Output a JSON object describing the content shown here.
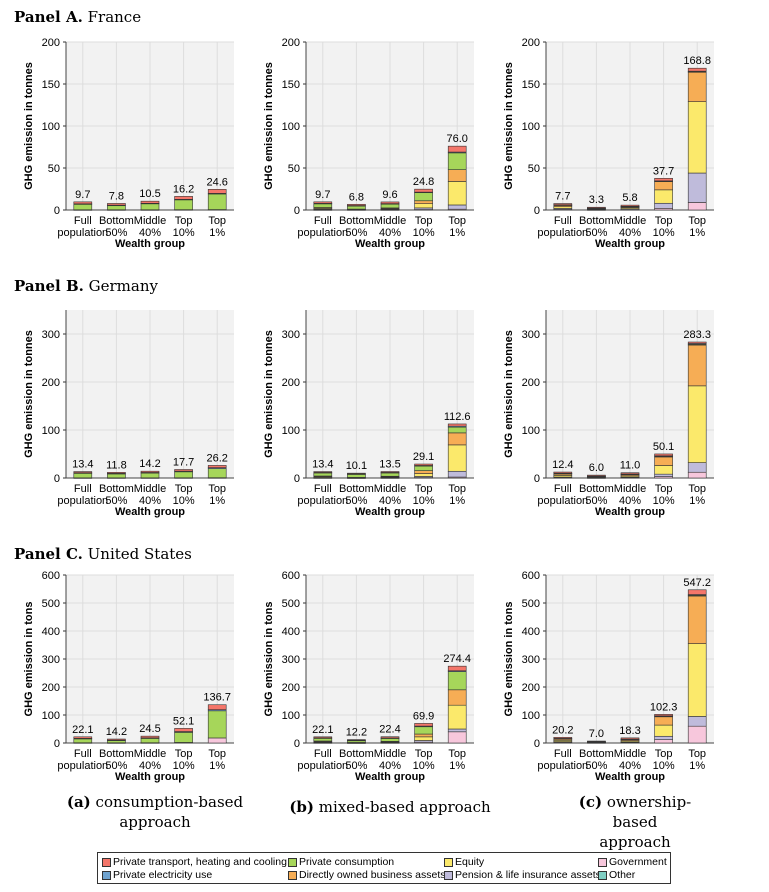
{
  "panels": [
    {
      "label": "Panel A.",
      "country": "France"
    },
    {
      "label": "Panel B.",
      "country": "Germany"
    },
    {
      "label": "Panel C.",
      "country": "United States"
    }
  ],
  "captions": [
    {
      "letter": "(a)",
      "line1": "consumption-based",
      "line2": "approach"
    },
    {
      "letter": "(b)",
      "line1": "mixed-based approach",
      "line2": ""
    },
    {
      "letter": "(c)",
      "line1": "ownership-based",
      "line2": "approach"
    }
  ],
  "legend": [
    {
      "name": "Private transport, heating and cooling",
      "color": "#f4766a"
    },
    {
      "name": "Private electricity use",
      "color": "#6fa3cf"
    },
    {
      "name": "Private consumption",
      "color": "#a6d65a"
    },
    {
      "name": "Directly owned business assets",
      "color": "#f6ad55"
    },
    {
      "name": "Equity",
      "color": "#fbe96b"
    },
    {
      "name": "Pension & life insurance assets",
      "color": "#bfbbdb"
    },
    {
      "name": "Government",
      "color": "#f7c7dc"
    },
    {
      "name": "Other",
      "color": "#7fcfc4"
    }
  ],
  "chart_data": [
    {
      "type": "bar",
      "panel": "France",
      "approach": "consumption-based",
      "ylabel": "GHG emission in tonnes",
      "xlabel": "Wealth group",
      "ylim": [
        0,
        200
      ],
      "yticks": [
        0,
        50,
        100,
        150,
        200
      ],
      "categories": [
        "Full population",
        "Bottom 50%",
        "Middle 40%",
        "Top 10%",
        "Top 1%"
      ],
      "totals": [
        9.7,
        7.8,
        10.5,
        16.2,
        24.6
      ],
      "series": [
        {
          "name": "Government",
          "values": [
            0.3,
            0.3,
            0.3,
            0.4,
            0.5
          ]
        },
        {
          "name": "Private consumption",
          "values": [
            6.7,
            5.2,
            7.3,
            11.8,
            18.6
          ]
        },
        {
          "name": "Private electricity use",
          "values": [
            0.4,
            0.3,
            0.4,
            0.5,
            0.7
          ]
        },
        {
          "name": "Private transport, heating and cooling",
          "values": [
            2.3,
            2.0,
            2.5,
            3.5,
            4.8
          ]
        }
      ]
    },
    {
      "type": "bar",
      "panel": "France",
      "approach": "mixed-based",
      "ylabel": "GHG emission in tonnes",
      "xlabel": "Wealth group",
      "ylim": [
        0,
        200
      ],
      "yticks": [
        0,
        50,
        100,
        150,
        200
      ],
      "categories": [
        "Full population",
        "Bottom 50%",
        "Middle 40%",
        "Top 10%",
        "Top 1%"
      ],
      "totals": [
        9.7,
        6.8,
        9.6,
        24.8,
        76.0
      ],
      "series": [
        {
          "name": "Government",
          "values": [
            0.3,
            0.3,
            0.3,
            0.5,
            1.0
          ]
        },
        {
          "name": "Pension & life insurance assets",
          "values": [
            0.8,
            0.3,
            0.7,
            2.0,
            5.0
          ]
        },
        {
          "name": "Equity",
          "values": [
            1.0,
            0.2,
            0.7,
            5.0,
            28.0
          ]
        },
        {
          "name": "Directly owned business assets",
          "values": [
            0.9,
            0.3,
            0.8,
            3.5,
            14.0
          ]
        },
        {
          "name": "Private consumption",
          "values": [
            4.6,
            3.9,
            4.8,
            9.8,
            20.0
          ]
        },
        {
          "name": "Private electricity use",
          "values": [
            0.3,
            0.3,
            0.3,
            0.5,
            1.0
          ]
        },
        {
          "name": "Private transport, heating and cooling",
          "values": [
            1.8,
            1.5,
            2.0,
            3.5,
            7.0
          ]
        }
      ]
    },
    {
      "type": "bar",
      "panel": "France",
      "approach": "ownership-based",
      "ylabel": "GHG emission in tonnes",
      "xlabel": "Wealth group",
      "ylim": [
        0,
        200
      ],
      "yticks": [
        0,
        50,
        100,
        150,
        200
      ],
      "categories": [
        "Full population",
        "Bottom 50%",
        "Middle 40%",
        "Top 10%",
        "Top 1%"
      ],
      "totals": [
        7.7,
        3.3,
        5.8,
        37.7,
        168.8
      ],
      "series": [
        {
          "name": "Government",
          "values": [
            0.6,
            0.3,
            0.5,
            2.0,
            9.0
          ]
        },
        {
          "name": "Pension & life insurance assets",
          "values": [
            1.3,
            0.5,
            1.0,
            6.0,
            35.0
          ]
        },
        {
          "name": "Equity",
          "values": [
            2.0,
            0.5,
            1.3,
            16.0,
            85.0
          ]
        },
        {
          "name": "Directly owned business assets",
          "values": [
            2.0,
            0.7,
            1.3,
            10.0,
            35.0
          ]
        },
        {
          "name": "Private consumption",
          "values": [
            0.2,
            0.2,
            0.2,
            0.5,
            1.0
          ]
        },
        {
          "name": "Private electricity use",
          "values": [
            0.1,
            0.1,
            0.1,
            0.2,
            0.3
          ]
        },
        {
          "name": "Private transport, heating and cooling",
          "values": [
            1.5,
            1.0,
            1.4,
            3.0,
            3.5
          ]
        }
      ]
    },
    {
      "type": "bar",
      "panel": "Germany",
      "approach": "consumption-based",
      "ylabel": "GHG emission in tonnes",
      "xlabel": "Wealth group",
      "ylim": [
        0,
        350
      ],
      "yticks": [
        0,
        100,
        200,
        300
      ],
      "categories": [
        "Full population",
        "Bottom 50%",
        "Middle 40%",
        "Top 10%",
        "Top 1%"
      ],
      "totals": [
        13.4,
        11.8,
        14.2,
        17.7,
        26.2
      ],
      "series": [
        {
          "name": "Government",
          "values": [
            0.4,
            0.4,
            0.4,
            0.5,
            0.6
          ]
        },
        {
          "name": "Private consumption",
          "values": [
            9.4,
            8.2,
            9.8,
            12.4,
            19.0
          ]
        },
        {
          "name": "Private electricity use",
          "values": [
            1.2,
            1.0,
            1.3,
            1.5,
            2.0
          ]
        },
        {
          "name": "Private transport, heating and cooling",
          "values": [
            2.4,
            2.2,
            2.7,
            3.3,
            4.6
          ]
        }
      ]
    },
    {
      "type": "bar",
      "panel": "Germany",
      "approach": "mixed-based",
      "ylabel": "GHG emission in tonnes",
      "xlabel": "Wealth group",
      "ylim": [
        0,
        350
      ],
      "yticks": [
        0,
        100,
        200,
        300
      ],
      "categories": [
        "Full population",
        "Bottom 50%",
        "Middle 40%",
        "Top 10%",
        "Top 1%"
      ],
      "totals": [
        13.4,
        10.1,
        13.5,
        29.1,
        112.6
      ],
      "series": [
        {
          "name": "Government",
          "values": [
            0.4,
            0.3,
            0.4,
            0.8,
            2.0
          ]
        },
        {
          "name": "Pension & life insurance assets",
          "values": [
            0.8,
            0.3,
            0.8,
            2.5,
            12.0
          ]
        },
        {
          "name": "Equity",
          "values": [
            1.5,
            0.3,
            1.2,
            6.0,
            55.0
          ]
        },
        {
          "name": "Directly owned business assets",
          "values": [
            1.5,
            0.4,
            1.3,
            6.0,
            25.0
          ]
        },
        {
          "name": "Private consumption",
          "values": [
            6.5,
            6.5,
            7.0,
            9.5,
            12.0
          ]
        },
        {
          "name": "Private electricity use",
          "values": [
            0.9,
            0.8,
            0.9,
            1.3,
            2.0
          ]
        },
        {
          "name": "Private transport, heating and cooling",
          "values": [
            1.8,
            1.5,
            1.9,
            3.0,
            4.6
          ]
        }
      ]
    },
    {
      "type": "bar",
      "panel": "Germany",
      "approach": "ownership-based",
      "ylabel": "GHG emission in tonnes",
      "xlabel": "Wealth group",
      "ylim": [
        0,
        350
      ],
      "yticks": [
        0,
        100,
        200,
        300
      ],
      "categories": [
        "Full population",
        "Bottom 50%",
        "Middle 40%",
        "Top 10%",
        "Top 1%"
      ],
      "totals": [
        12.4,
        6.0,
        11.0,
        50.1,
        283.3
      ],
      "series": [
        {
          "name": "Government",
          "values": [
            0.8,
            0.4,
            0.8,
            3.0,
            12.0
          ]
        },
        {
          "name": "Pension & life insurance assets",
          "values": [
            1.2,
            0.5,
            1.0,
            5.0,
            20.0
          ]
        },
        {
          "name": "Equity",
          "values": [
            3.5,
            1.0,
            2.5,
            18.0,
            160.0
          ]
        },
        {
          "name": "Directly owned business assets",
          "values": [
            3.5,
            1.3,
            3.0,
            18.0,
            85.0
          ]
        },
        {
          "name": "Private consumption",
          "values": [
            0.4,
            0.4,
            0.5,
            1.0,
            1.5
          ]
        },
        {
          "name": "Private electricity use",
          "values": [
            0.6,
            0.5,
            0.7,
            1.3,
            1.8
          ]
        },
        {
          "name": "Private transport, heating and cooling",
          "values": [
            2.4,
            1.9,
            2.5,
            3.8,
            3.0
          ]
        }
      ]
    },
    {
      "type": "bar",
      "panel": "United States",
      "approach": "consumption-based",
      "ylabel": "GHG emission in tons",
      "xlabel": "Wealth group",
      "ylim": [
        0,
        600
      ],
      "yticks": [
        0,
        100,
        200,
        300,
        400,
        500,
        600
      ],
      "categories": [
        "Full population",
        "Bottom 50%",
        "Middle 40%",
        "Top 10%",
        "Top 1%"
      ],
      "totals": [
        22.1,
        14.2,
        24.5,
        52.1,
        136.7
      ],
      "series": [
        {
          "name": "Government",
          "values": [
            1.0,
            0.8,
            1.0,
            2.0,
            18.0
          ]
        },
        {
          "name": "Private consumption",
          "values": [
            14.0,
            8.5,
            15.6,
            36.0,
            97.0
          ]
        },
        {
          "name": "Private electricity use",
          "values": [
            1.6,
            1.2,
            1.9,
            3.0,
            4.0
          ]
        },
        {
          "name": "Private transport, heating and cooling",
          "values": [
            5.5,
            3.7,
            6.0,
            11.1,
            17.7
          ]
        }
      ]
    },
    {
      "type": "bar",
      "panel": "United States",
      "approach": "mixed-based",
      "ylabel": "GHG emission in tons",
      "xlabel": "Wealth group",
      "ylim": [
        0,
        600
      ],
      "yticks": [
        0,
        100,
        200,
        300,
        400,
        500,
        600
      ],
      "categories": [
        "Full population",
        "Bottom 50%",
        "Middle 40%",
        "Top 10%",
        "Top 1%"
      ],
      "totals": [
        22.1,
        12.2,
        22.4,
        69.9,
        274.4
      ],
      "series": [
        {
          "name": "Government",
          "values": [
            1.0,
            0.6,
            1.0,
            3.0,
            40.0
          ]
        },
        {
          "name": "Pension & life insurance assets",
          "values": [
            1.5,
            0.4,
            1.4,
            6.0,
            10.0
          ]
        },
        {
          "name": "Equity",
          "values": [
            2.5,
            0.4,
            1.6,
            13.0,
            85.0
          ]
        },
        {
          "name": "Directly owned business assets",
          "values": [
            2.2,
            0.6,
            1.8,
            10.0,
            55.0
          ]
        },
        {
          "name": "Private consumption",
          "values": [
            10.0,
            7.0,
            11.0,
            26.0,
            65.0
          ]
        },
        {
          "name": "Private electricity use",
          "values": [
            1.2,
            0.9,
            1.3,
            2.5,
            3.0
          ]
        },
        {
          "name": "Private transport, heating and cooling",
          "values": [
            3.7,
            2.3,
            4.3,
            9.4,
            16.4
          ]
        }
      ]
    },
    {
      "type": "bar",
      "panel": "United States",
      "approach": "ownership-based",
      "ylabel": "GHG emission in tons",
      "xlabel": "Wealth group",
      "ylim": [
        0,
        600
      ],
      "yticks": [
        0,
        100,
        200,
        300,
        400,
        500,
        600
      ],
      "categories": [
        "Full population",
        "Bottom 50%",
        "Middle 40%",
        "Top 10%",
        "Top 1%"
      ],
      "totals": [
        20.2,
        7.0,
        18.3,
        102.3,
        547.2
      ],
      "series": [
        {
          "name": "Government",
          "values": [
            2.5,
            1.0,
            2.2,
            12.0,
            60.0
          ]
        },
        {
          "name": "Pension & life insurance assets",
          "values": [
            2.2,
            0.6,
            1.8,
            12.0,
            35.0
          ]
        },
        {
          "name": "Equity",
          "values": [
            5.0,
            1.4,
            4.0,
            40.0,
            260.0
          ]
        },
        {
          "name": "Directly owned business assets",
          "values": [
            5.0,
            1.3,
            4.5,
            30.0,
            170.0
          ]
        },
        {
          "name": "Private consumption",
          "values": [
            0.8,
            0.5,
            0.8,
            1.5,
            2.5
          ]
        },
        {
          "name": "Private electricity use",
          "values": [
            0.9,
            0.5,
            0.9,
            1.6,
            2.7
          ]
        },
        {
          "name": "Private transport, heating and cooling",
          "values": [
            3.8,
            1.7,
            4.1,
            5.2,
            17.0
          ]
        }
      ]
    }
  ]
}
